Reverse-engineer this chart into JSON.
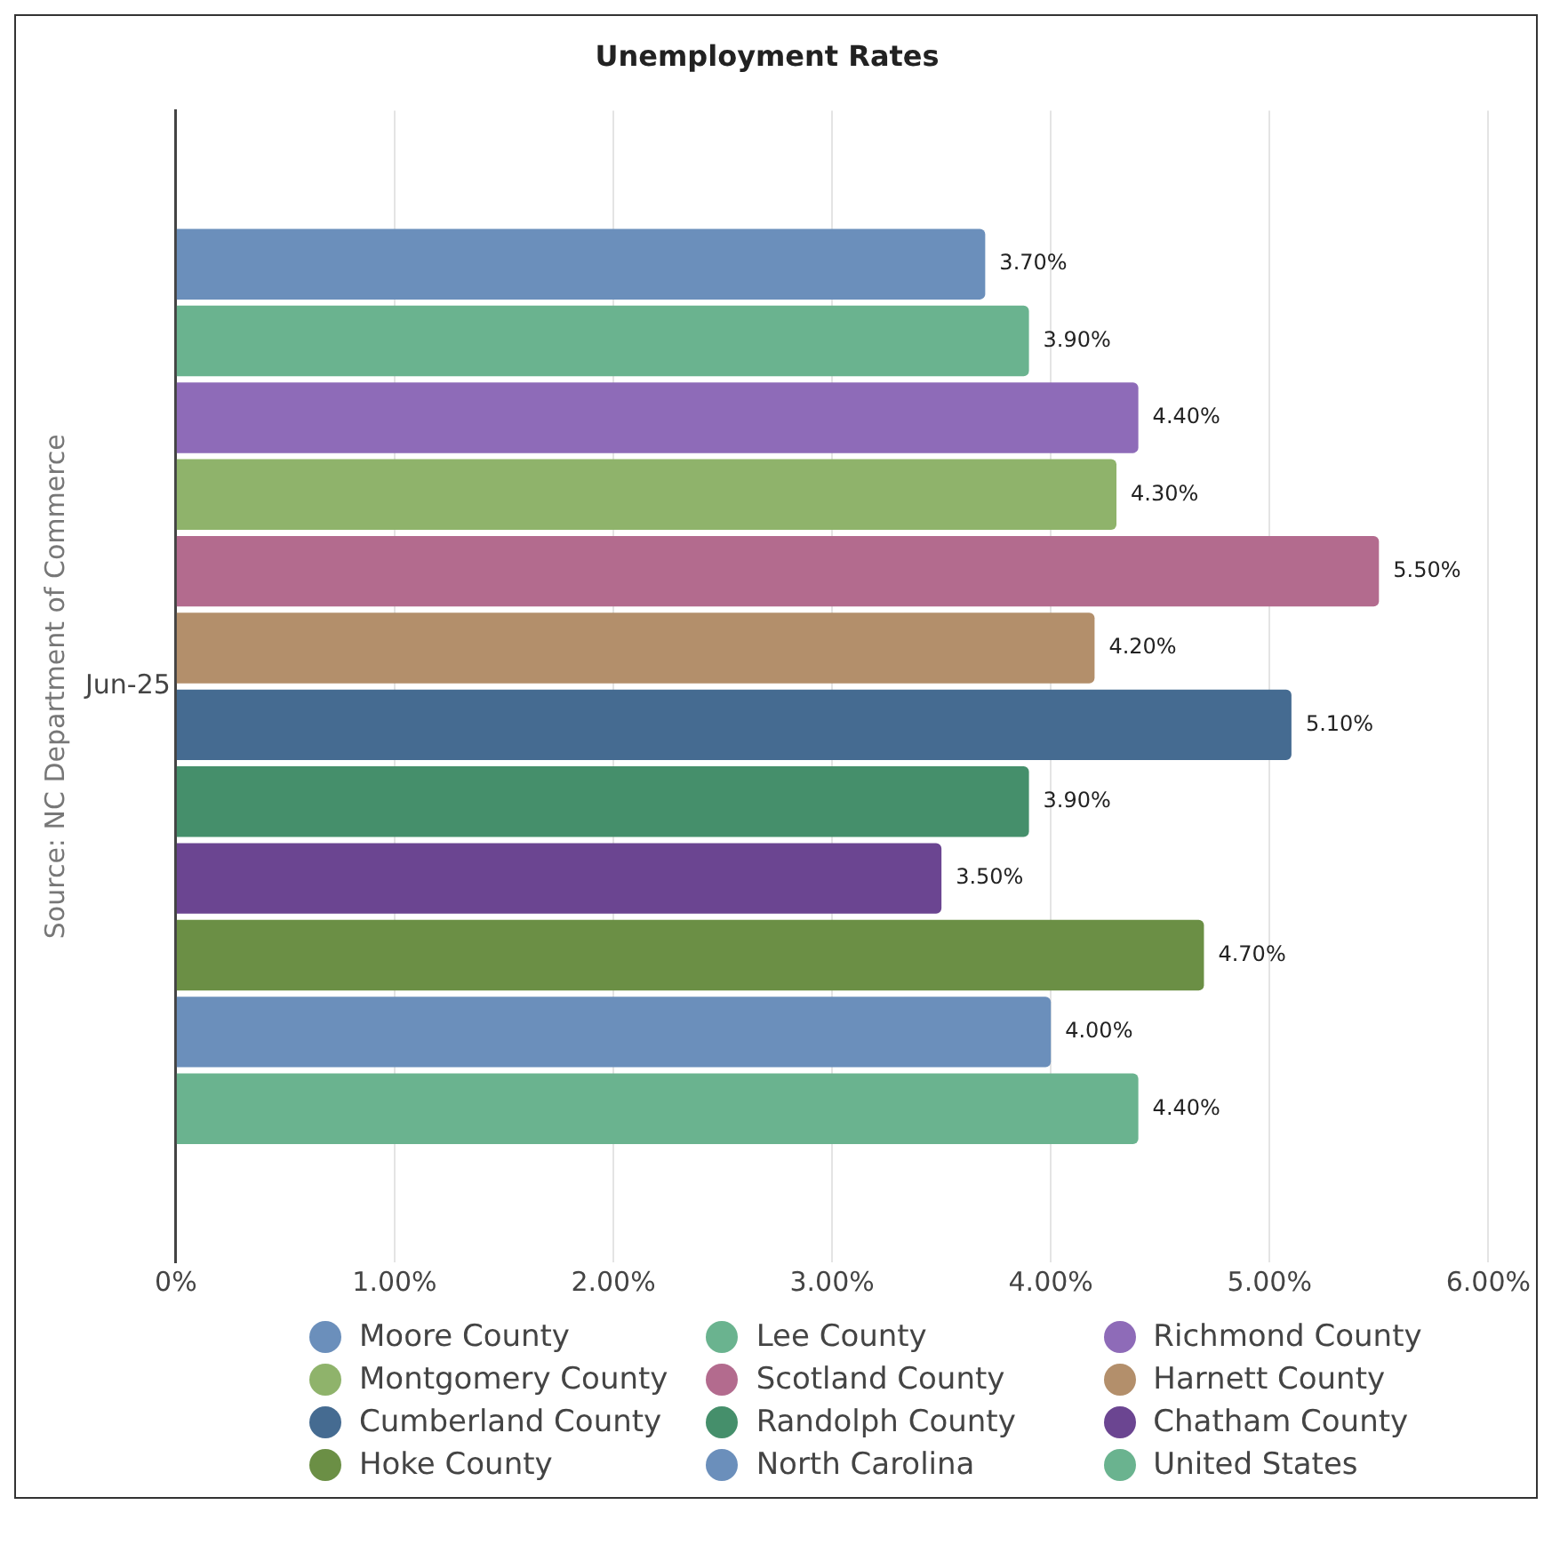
{
  "chart_data": {
    "type": "bar",
    "orientation": "horizontal",
    "title": "Unemployment Rates",
    "ylabel": "Source: NC Department of Commerce",
    "categories": [
      "Jun-25"
    ],
    "series": [
      {
        "name": "Moore County",
        "color": "#6b8fbb",
        "values": [
          3.7
        ],
        "value_labels": [
          "3.70%"
        ]
      },
      {
        "name": "Lee County",
        "color": "#6ab38f",
        "values": [
          3.9
        ],
        "value_labels": [
          "3.90%"
        ]
      },
      {
        "name": "Richmond County",
        "color": "#8e6bb8",
        "values": [
          4.4
        ],
        "value_labels": [
          "4.40%"
        ]
      },
      {
        "name": "Montgomery County",
        "color": "#8fb36b",
        "values": [
          4.3
        ],
        "value_labels": [
          "4.30%"
        ]
      },
      {
        "name": "Scotland County",
        "color": "#b36b8e",
        "values": [
          5.5
        ],
        "value_labels": [
          "5.50%"
        ]
      },
      {
        "name": "Harnett County",
        "color": "#b38f6b",
        "values": [
          4.2
        ],
        "value_labels": [
          "4.20%"
        ]
      },
      {
        "name": "Cumberland County",
        "color": "#456b91",
        "values": [
          5.1
        ],
        "value_labels": [
          "5.10%"
        ]
      },
      {
        "name": "Randolph County",
        "color": "#458f6b",
        "values": [
          3.9
        ],
        "value_labels": [
          "3.90%"
        ]
      },
      {
        "name": "Chatham County",
        "color": "#6b4591",
        "values": [
          3.5
        ],
        "value_labels": [
          "3.50%"
        ]
      },
      {
        "name": "Hoke County",
        "color": "#6b8f45",
        "values": [
          4.7
        ],
        "value_labels": [
          "4.70%"
        ]
      },
      {
        "name": "North Carolina",
        "color": "#6b8fbb",
        "values": [
          4.0
        ],
        "value_labels": [
          "4.00%"
        ]
      },
      {
        "name": "United States",
        "color": "#6ab38f",
        "values": [
          4.4
        ],
        "value_labels": [
          "4.40%"
        ]
      }
    ],
    "xlim": [
      0,
      6
    ],
    "xticks": [
      {
        "value": 0,
        "label": "0%"
      },
      {
        "value": 1,
        "label": "1.00%"
      },
      {
        "value": 2,
        "label": "2.00%"
      },
      {
        "value": 3,
        "label": "3.00%"
      },
      {
        "value": 4,
        "label": "4.00%"
      },
      {
        "value": 5,
        "label": "5.00%"
      },
      {
        "value": 6,
        "label": "6.00%"
      }
    ],
    "grid": "x",
    "legend": "bottom"
  }
}
